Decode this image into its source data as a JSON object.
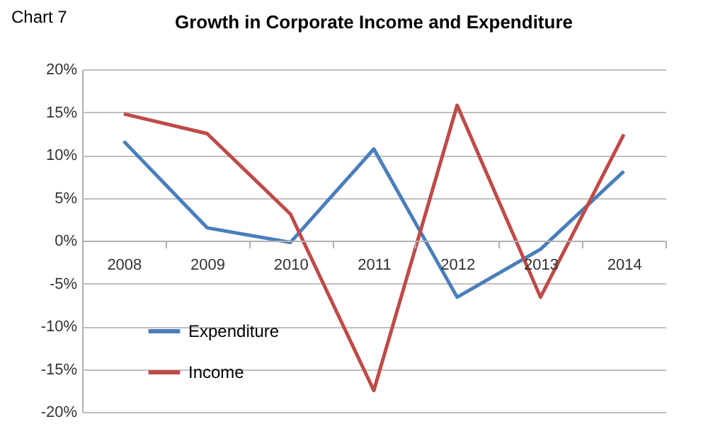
{
  "chart_data": {
    "type": "line",
    "title": "Growth in Corporate Income and Expenditure",
    "annotations": [
      "Chart 7"
    ],
    "categories": [
      "2008",
      "2009",
      "2010",
      "2011",
      "2012",
      "2013",
      "2014"
    ],
    "series": [
      {
        "name": "Expenditure",
        "color": "#4a7ebb",
        "values": [
          11.6,
          1.5,
          -0.2,
          10.7,
          -6.6,
          -1.0,
          8.1
        ]
      },
      {
        "name": "Income",
        "color": "#be4b48",
        "values": [
          14.8,
          12.5,
          3.1,
          -17.5,
          15.8,
          -6.6,
          12.4
        ]
      }
    ],
    "ylim": [
      -20,
      20
    ],
    "yticks": [
      {
        "value": -20,
        "label": "-20%"
      },
      {
        "value": -15,
        "label": "-15%"
      },
      {
        "value": -10,
        "label": "-10%"
      },
      {
        "value": -5,
        "label": "-5%"
      },
      {
        "value": 0,
        "label": "0%"
      },
      {
        "value": 5,
        "label": "5%"
      },
      {
        "value": 10,
        "label": "10%"
      },
      {
        "value": 15,
        "label": "15%"
      },
      {
        "value": 20,
        "label": "20%"
      }
    ],
    "grid": "y",
    "legend": "bottom left"
  }
}
